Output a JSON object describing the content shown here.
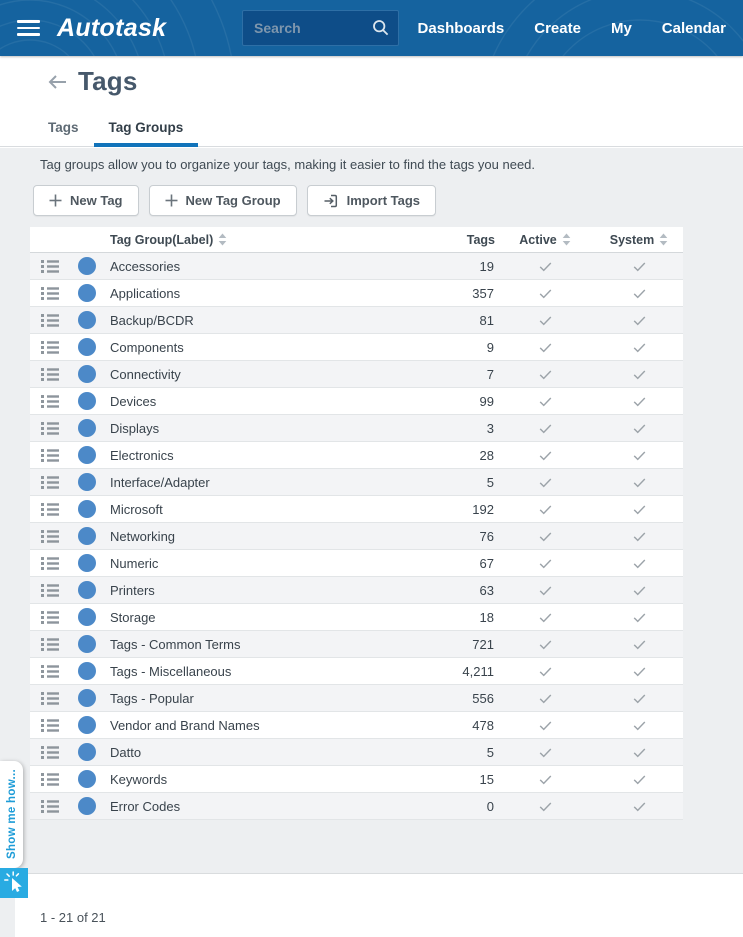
{
  "navbar": {
    "logo": "Autotask",
    "search_placeholder": "Search",
    "items": [
      {
        "label": "Dashboards"
      },
      {
        "label": "Create"
      },
      {
        "label": "My"
      },
      {
        "label": "Calendar"
      }
    ]
  },
  "page": {
    "title": "Tags",
    "tabs": [
      {
        "label": "Tags",
        "active": false
      },
      {
        "label": "Tag Groups",
        "active": true
      }
    ],
    "description": "Tag groups allow you to organize your tags, making it easier to find the tags you need.",
    "buttons": [
      {
        "label": "New Tag",
        "icon": "plus"
      },
      {
        "label": "New Tag Group",
        "icon": "plus"
      },
      {
        "label": "Import Tags",
        "icon": "import"
      }
    ]
  },
  "table": {
    "columns": [
      {
        "label": "Tag Group(Label)",
        "sortable": true
      },
      {
        "label": "Tags",
        "sortable": false
      },
      {
        "label": "Active",
        "sortable": true
      },
      {
        "label": "System",
        "sortable": true
      }
    ],
    "rows": [
      {
        "label": "Accessories",
        "tags": "19",
        "active": true,
        "system": true
      },
      {
        "label": "Applications",
        "tags": "357",
        "active": true,
        "system": true
      },
      {
        "label": "Backup/BCDR",
        "tags": "81",
        "active": true,
        "system": true
      },
      {
        "label": "Components",
        "tags": "9",
        "active": true,
        "system": true
      },
      {
        "label": "Connectivity",
        "tags": "7",
        "active": true,
        "system": true
      },
      {
        "label": "Devices",
        "tags": "99",
        "active": true,
        "system": true
      },
      {
        "label": "Displays",
        "tags": "3",
        "active": true,
        "system": true
      },
      {
        "label": "Electronics",
        "tags": "28",
        "active": true,
        "system": true
      },
      {
        "label": "Interface/Adapter",
        "tags": "5",
        "active": true,
        "system": true
      },
      {
        "label": "Microsoft",
        "tags": "192",
        "active": true,
        "system": true
      },
      {
        "label": "Networking",
        "tags": "76",
        "active": true,
        "system": true
      },
      {
        "label": "Numeric",
        "tags": "67",
        "active": true,
        "system": true
      },
      {
        "label": "Printers",
        "tags": "63",
        "active": true,
        "system": true
      },
      {
        "label": "Storage",
        "tags": "18",
        "active": true,
        "system": true
      },
      {
        "label": "Tags - Common Terms",
        "tags": "721",
        "active": true,
        "system": true
      },
      {
        "label": "Tags - Miscellaneous",
        "tags": "4,211",
        "active": true,
        "system": true
      },
      {
        "label": "Tags - Popular",
        "tags": "556",
        "active": true,
        "system": true
      },
      {
        "label": "Vendor and Brand Names",
        "tags": "478",
        "active": true,
        "system": true
      },
      {
        "label": "Datto",
        "tags": "5",
        "active": true,
        "system": true
      },
      {
        "label": "Keywords",
        "tags": "15",
        "active": true,
        "system": true
      },
      {
        "label": "Error Codes",
        "tags": "0",
        "active": true,
        "system": true
      }
    ]
  },
  "footer": {
    "range_text": "1 - 21 of 21"
  },
  "show_me_how": {
    "label": "Show me how..."
  },
  "colors": {
    "navbar": "#15639F",
    "search_bg": "#0E4D88",
    "tab_underline": "#1173BA",
    "tag_dot": "#4C89C8",
    "show_me_how": "#1E9CD7",
    "show_me_how_icon_bg": "#29ABE2",
    "check": "#9CA3A9"
  }
}
